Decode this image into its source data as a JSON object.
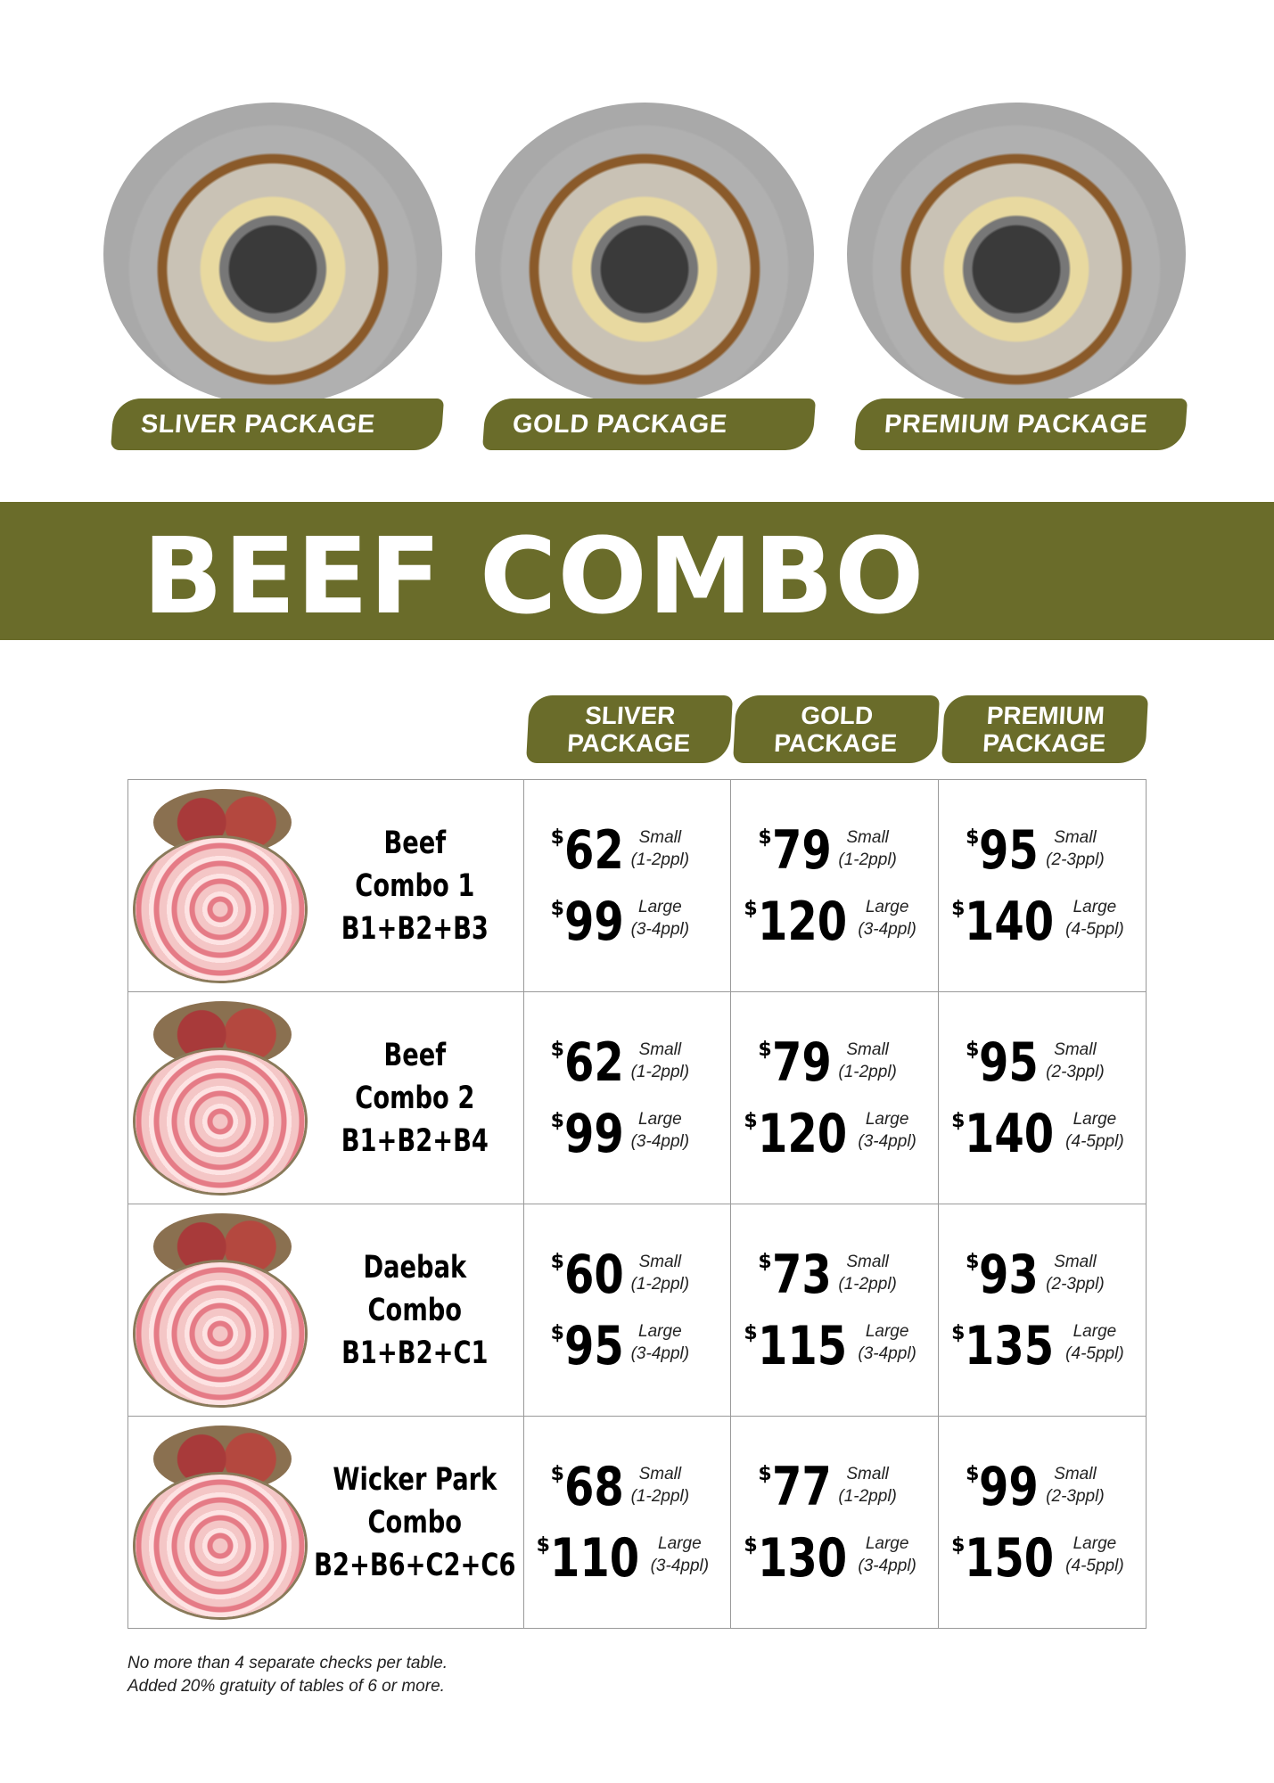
{
  "packages": [
    {
      "label": "SLIVER PACKAGE"
    },
    {
      "label": "GOLD PACKAGE"
    },
    {
      "label": "PREMIUM PACKAGE"
    }
  ],
  "section_title": "BEEF COMBO",
  "column_headers": [
    [
      "SLIVER",
      "PACKAGE"
    ],
    [
      "GOLD",
      "PACKAGE"
    ],
    [
      "PREMIUM",
      "PACKAGE"
    ]
  ],
  "currency": "$",
  "rows": [
    {
      "name": [
        "Beef",
        "Combo 1",
        "B1+B2+B3"
      ],
      "prices": [
        {
          "small": "62",
          "small_label": "Small",
          "small_ppl": "(1-2ppl)",
          "large": "99",
          "large_label": "Large",
          "large_ppl": "(3-4ppl)"
        },
        {
          "small": "79",
          "small_label": "Small",
          "small_ppl": "(1-2ppl)",
          "large": "120",
          "large_label": "Large",
          "large_ppl": "(3-4ppl)"
        },
        {
          "small": "95",
          "small_label": "Small",
          "small_ppl": "(2-3ppl)",
          "large": "140",
          "large_label": "Large",
          "large_ppl": "(4-5ppl)"
        }
      ]
    },
    {
      "name": [
        "Beef",
        "Combo 2",
        "B1+B2+B4"
      ],
      "prices": [
        {
          "small": "62",
          "small_label": "Small",
          "small_ppl": "(1-2ppl)",
          "large": "99",
          "large_label": "Large",
          "large_ppl": "(3-4ppl)"
        },
        {
          "small": "79",
          "small_label": "Small",
          "small_ppl": "(1-2ppl)",
          "large": "120",
          "large_label": "Large",
          "large_ppl": "(3-4ppl)"
        },
        {
          "small": "95",
          "small_label": "Small",
          "small_ppl": "(2-3ppl)",
          "large": "140",
          "large_label": "Large",
          "large_ppl": "(4-5ppl)"
        }
      ]
    },
    {
      "name": [
        "Daebak",
        "Combo",
        "B1+B2+C1"
      ],
      "prices": [
        {
          "small": "60",
          "small_label": "Small",
          "small_ppl": "(1-2ppl)",
          "large": "95",
          "large_label": "Large",
          "large_ppl": "(3-4ppl)"
        },
        {
          "small": "73",
          "small_label": "Small",
          "small_ppl": "(1-2ppl)",
          "large": "115",
          "large_label": "Large",
          "large_ppl": "(3-4ppl)"
        },
        {
          "small": "93",
          "small_label": "Small",
          "small_ppl": "(2-3ppl)",
          "large": "135",
          "large_label": "Large",
          "large_ppl": "(4-5ppl)"
        }
      ]
    },
    {
      "name": [
        "Wicker Park",
        "Combo",
        "B2+B6+C2+C6"
      ],
      "prices": [
        {
          "small": "68",
          "small_label": "Small",
          "small_ppl": "(1-2ppl)",
          "large": "110",
          "large_label": "Large",
          "large_ppl": "(3-4ppl)"
        },
        {
          "small": "77",
          "small_label": "Small",
          "small_ppl": "(1-2ppl)",
          "large": "130",
          "large_label": "Large",
          "large_ppl": "(3-4ppl)"
        },
        {
          "small": "99",
          "small_label": "Small",
          "small_ppl": "(2-3ppl)",
          "large": "150",
          "large_label": "Large",
          "large_ppl": "(4-5ppl)"
        }
      ]
    }
  ],
  "notes": [
    "No more than 4 separate checks per table.",
    "Added 20% gratuity of tables of 6 or more."
  ],
  "colors": {
    "olive": "#6a6c2a"
  }
}
